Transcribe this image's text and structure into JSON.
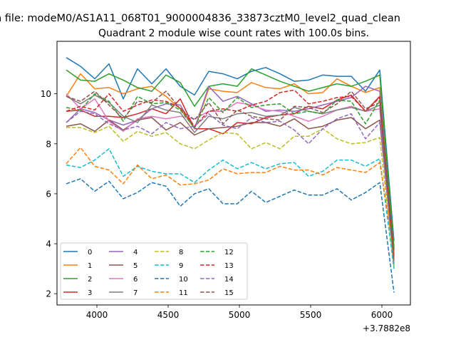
{
  "figure": {
    "suptitle": "n file: modeM0/AS1A11_068T01_9000004836_33873cztM0_level2_quad_clean",
    "title": "Quadrant 2 module wise count rates with 100.0s bins.",
    "offset_label": "+3.7882e8"
  },
  "chart_data": {
    "type": "line",
    "title": "Quadrant 2 module wise count rates with 100.0s bins.",
    "xlabel": "",
    "ylabel": "",
    "x_offset": 378820000,
    "xlim": [
      3720,
      6200
    ],
    "ylim": [
      1.55,
      12.1
    ],
    "xticks": [
      4000,
      4500,
      5000,
      5500,
      6000
    ],
    "xtick_labels": [
      "4000",
      "4500",
      "5000",
      "5500",
      "6000"
    ],
    "yticks": [
      2,
      4,
      6,
      8,
      10
    ],
    "ytick_labels": [
      "2",
      "4",
      "6",
      "8",
      "10"
    ],
    "grid": false,
    "legend": {
      "placement": "lower-left",
      "columns": 4
    },
    "x": [
      3785,
      3885,
      3985,
      4085,
      4185,
      4285,
      4385,
      4485,
      4585,
      4685,
      4785,
      4885,
      4985,
      5085,
      5185,
      5285,
      5385,
      5485,
      5585,
      5685,
      5785,
      5885,
      5985,
      6085
    ],
    "series": [
      {
        "name": "0",
        "color": "#1f77b4",
        "dash": "solid",
        "values": [
          11.45,
          11.1,
          10.6,
          11.2,
          9.8,
          11.0,
          10.4,
          11.0,
          10.3,
          9.95,
          10.9,
          10.8,
          10.6,
          10.9,
          11.05,
          10.8,
          10.5,
          10.55,
          10.75,
          10.7,
          10.7,
          10.1,
          10.95,
          4.1
        ]
      },
      {
        "name": "1",
        "color": "#ff7f0e",
        "dash": "solid",
        "values": [
          9.9,
          10.8,
          10.2,
          10.25,
          10.0,
          10.2,
          10.3,
          9.9,
          9.4,
          8.6,
          10.2,
          10.1,
          10.05,
          10.45,
          10.25,
          10.2,
          10.4,
          10.0,
          10.05,
          10.6,
          10.3,
          10.05,
          10.25,
          3.9
        ]
      },
      {
        "name": "2",
        "color": "#2ca02c",
        "dash": "solid",
        "values": [
          10.95,
          10.55,
          10.5,
          10.8,
          10.55,
          10.25,
          10.1,
          10.75,
          10.45,
          9.5,
          10.3,
          10.4,
          10.3,
          11.0,
          10.75,
          10.5,
          10.3,
          10.1,
          10.25,
          10.4,
          10.3,
          10.5,
          10.75,
          3.8
        ]
      },
      {
        "name": "3",
        "color": "#d62728",
        "dash": "solid",
        "values": [
          9.3,
          9.35,
          9.1,
          9.1,
          9.05,
          9.2,
          9.4,
          9.2,
          9.8,
          8.6,
          8.6,
          8.4,
          8.85,
          8.8,
          9.05,
          9.15,
          9.2,
          9.5,
          9.4,
          9.75,
          9.95,
          9.3,
          9.9,
          3.6
        ]
      },
      {
        "name": "4",
        "color": "#9467bd",
        "dash": "solid",
        "values": [
          8.85,
          9.4,
          9.25,
          8.95,
          8.75,
          8.95,
          9.4,
          9.6,
          9.55,
          8.6,
          10.3,
          9.7,
          9.9,
          9.6,
          9.3,
          9.35,
          9.3,
          9.4,
          9.55,
          9.7,
          9.85,
          10.3,
          10.1,
          3.5
        ]
      },
      {
        "name": "5",
        "color": "#8c564b",
        "dash": "solid",
        "values": [
          8.7,
          8.8,
          8.5,
          8.95,
          8.55,
          8.95,
          9.05,
          8.55,
          8.85,
          8.35,
          8.6,
          8.65,
          8.7,
          8.85,
          8.85,
          8.7,
          9.0,
          8.6,
          8.7,
          8.95,
          9.05,
          8.6,
          8.95,
          3.3
        ]
      },
      {
        "name": "6",
        "color": "#e377c2",
        "dash": "solid",
        "values": [
          10.0,
          9.4,
          9.8,
          8.9,
          8.5,
          9.0,
          9.1,
          9.0,
          9.1,
          9.0,
          9.3,
          9.3,
          9.65,
          9.55,
          9.35,
          9.3,
          9.1,
          8.9,
          9.1,
          9.35,
          9.5,
          9.3,
          9.4,
          3.2
        ]
      },
      {
        "name": "7",
        "color": "#7f7f7f",
        "dash": "solid",
        "values": [
          9.9,
          9.6,
          9.95,
          9.65,
          9.1,
          8.85,
          9.55,
          9.35,
          9.25,
          8.45,
          9.1,
          9.0,
          9.2,
          9.25,
          9.1,
          9.15,
          9.45,
          9.3,
          9.2,
          9.35,
          9.45,
          9.3,
          9.55,
          3.1
        ]
      },
      {
        "name": "8",
        "color": "#bcbd22",
        "dash": "dashed",
        "values": [
          8.65,
          8.65,
          8.45,
          8.7,
          8.1,
          8.5,
          8.3,
          8.45,
          8.0,
          7.8,
          8.15,
          8.45,
          8.4,
          7.8,
          8.05,
          7.8,
          8.3,
          8.3,
          8.6,
          8.2,
          8.0,
          8.05,
          8.25,
          3.0
        ]
      },
      {
        "name": "9",
        "color": "#17becf",
        "dash": "dashed",
        "values": [
          7.15,
          7.05,
          7.35,
          7.8,
          6.7,
          7.1,
          6.9,
          6.8,
          6.8,
          6.45,
          6.95,
          7.35,
          7.0,
          7.25,
          7.0,
          7.2,
          7.25,
          6.7,
          6.9,
          7.35,
          7.35,
          7.1,
          7.4,
          3.0
        ]
      },
      {
        "name": "10",
        "color": "#1f77b4",
        "dash": "dashed",
        "values": [
          6.4,
          6.6,
          6.1,
          6.5,
          5.8,
          6.05,
          6.45,
          6.3,
          5.5,
          6.0,
          6.2,
          5.6,
          5.6,
          6.1,
          5.65,
          5.9,
          6.15,
          5.95,
          5.95,
          6.2,
          5.75,
          6.05,
          6.45,
          2.05
        ]
      },
      {
        "name": "11",
        "color": "#ff7f0e",
        "dash": "dashed",
        "values": [
          7.2,
          7.85,
          7.1,
          6.95,
          6.4,
          7.15,
          6.6,
          6.75,
          6.35,
          6.4,
          6.55,
          7.0,
          6.8,
          6.85,
          6.85,
          7.1,
          6.95,
          6.95,
          6.75,
          7.05,
          6.95,
          6.85,
          7.25,
          3.6
        ]
      },
      {
        "name": "12",
        "color": "#2ca02c",
        "dash": "dashed",
        "values": [
          9.45,
          9.35,
          10.0,
          9.7,
          8.9,
          9.9,
          9.6,
          9.65,
          9.35,
          8.65,
          9.85,
          9.25,
          9.85,
          9.45,
          9.55,
          9.6,
          9.2,
          9.3,
          9.2,
          9.75,
          9.7,
          8.8,
          9.75,
          3.75
        ]
      },
      {
        "name": "13",
        "color": "#d62728",
        "dash": "dashed",
        "values": [
          9.3,
          9.5,
          9.35,
          10.0,
          9.3,
          9.55,
          9.75,
          9.7,
          9.45,
          8.7,
          9.3,
          9.4,
          9.3,
          9.55,
          9.7,
          10.05,
          10.15,
          9.6,
          9.7,
          9.85,
          9.9,
          9.3,
          9.85,
          3.4
        ]
      },
      {
        "name": "14",
        "color": "#9467bd",
        "dash": "dashed",
        "values": [
          8.85,
          9.3,
          9.2,
          8.8,
          8.55,
          8.7,
          8.4,
          8.85,
          8.6,
          8.7,
          9.2,
          8.75,
          8.6,
          9.05,
          8.85,
          8.9,
          8.55,
          8.0,
          8.6,
          9.0,
          9.2,
          8.2,
          8.85,
          3.3
        ]
      },
      {
        "name": "15",
        "color": "#8c564b",
        "dash": "dashed",
        "values": [
          9.9,
          9.7,
          10.1,
          9.55,
          9.0,
          9.7,
          9.65,
          10.1,
          9.4,
          8.95,
          9.65,
          8.8,
          9.35,
          9.1,
          9.0,
          8.95,
          9.5,
          9.45,
          9.25,
          9.6,
          10.1,
          9.4,
          9.65,
          3.3
        ]
      }
    ]
  }
}
